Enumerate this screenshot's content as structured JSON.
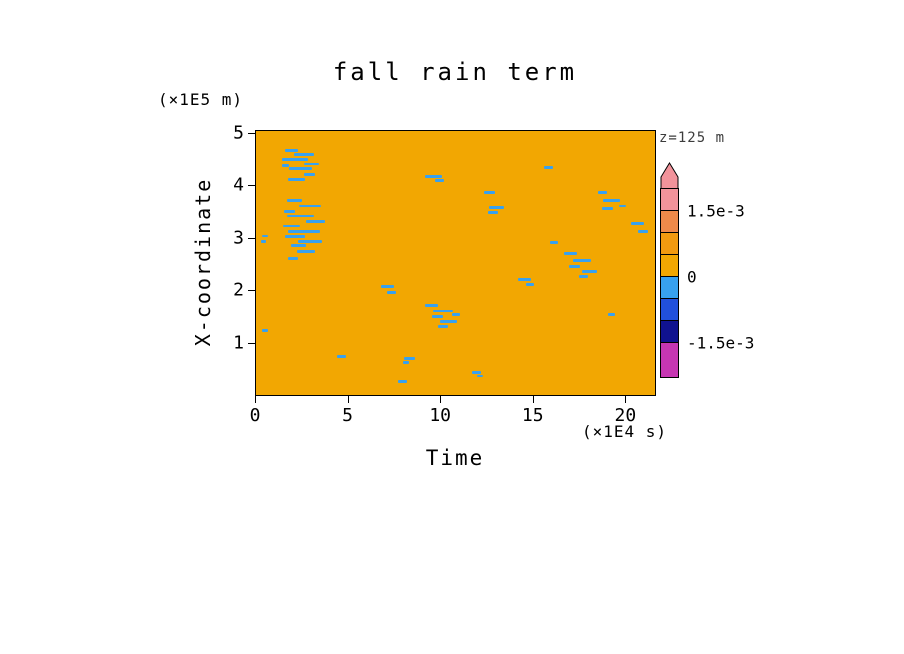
{
  "title": "fall rain term",
  "annotation": "z=125 m",
  "axes": {
    "x_label": "Time",
    "x_unit": "(×1E4 s)",
    "y_label": "X-coordinate",
    "y_unit": "(×1E5 m)",
    "x_ticks": [
      0,
      5,
      10,
      15,
      20
    ],
    "y_ticks": [
      1,
      2,
      3,
      4,
      5
    ]
  },
  "chart_data": {
    "type": "heatmap",
    "title": "fall rain term",
    "xlabel": "Time (×1E4 s)",
    "ylabel": "X-coordinate (×1E5 m)",
    "level_annotation": "z=125 m",
    "x_range": [
      0,
      21.6
    ],
    "y_range": [
      0,
      5.05
    ],
    "background_value": 0,
    "background_color": "#F2A702",
    "negative_patch_color": "#38A1EF",
    "colorbar": {
      "arrow_color": "#F2939B",
      "bands": [
        {
          "color": "#F2939B",
          "label_below": "1.5e-3"
        },
        {
          "color": "#EF8A4A"
        },
        {
          "color": "#F29A10"
        },
        {
          "color": "#F2A702",
          "label_below": "0"
        },
        {
          "color": "#38A1EF"
        },
        {
          "color": "#2150DC"
        },
        {
          "color": "#10128F",
          "label_below": "-1.5e-3"
        },
        {
          "color": "#C636B2",
          "tall": true
        }
      ]
    },
    "patches": [
      {
        "t": 1.9,
        "x": 4.68,
        "w": 0.7
      },
      {
        "t": 2.6,
        "x": 4.6,
        "w": 1.1
      },
      {
        "t": 2.1,
        "x": 4.5,
        "w": 1.4
      },
      {
        "t": 3.0,
        "x": 4.42,
        "w": 0.8
      },
      {
        "t": 2.4,
        "x": 4.33,
        "w": 1.2
      },
      {
        "t": 1.6,
        "x": 4.4,
        "w": 0.4
      },
      {
        "t": 2.9,
        "x": 4.22,
        "w": 0.6
      },
      {
        "t": 2.2,
        "x": 4.12,
        "w": 0.9
      },
      {
        "t": 2.1,
        "x": 3.72,
        "w": 0.8
      },
      {
        "t": 2.9,
        "x": 3.62,
        "w": 1.2
      },
      {
        "t": 1.8,
        "x": 3.52,
        "w": 0.6
      },
      {
        "t": 2.4,
        "x": 3.43,
        "w": 1.5
      },
      {
        "t": 3.2,
        "x": 3.33,
        "w": 1.0
      },
      {
        "t": 1.9,
        "x": 3.24,
        "w": 0.9
      },
      {
        "t": 2.6,
        "x": 3.14,
        "w": 1.7
      },
      {
        "t": 2.1,
        "x": 3.04,
        "w": 1.1
      },
      {
        "t": 2.9,
        "x": 2.95,
        "w": 1.3
      },
      {
        "t": 2.3,
        "x": 2.86,
        "w": 0.8
      },
      {
        "t": 2.7,
        "x": 2.76,
        "w": 1.0
      },
      {
        "t": 2.0,
        "x": 2.62,
        "w": 0.5
      },
      {
        "t": 0.5,
        "x": 3.05,
        "w": 0.35
      },
      {
        "t": 0.4,
        "x": 2.95,
        "w": 0.3
      },
      {
        "t": 9.6,
        "x": 4.18,
        "w": 0.9
      },
      {
        "t": 9.9,
        "x": 4.1,
        "w": 0.5
      },
      {
        "t": 12.6,
        "x": 3.88,
        "w": 0.6
      },
      {
        "t": 13.0,
        "x": 3.6,
        "w": 0.8
      },
      {
        "t": 12.8,
        "x": 3.5,
        "w": 0.5
      },
      {
        "t": 15.8,
        "x": 4.35,
        "w": 0.5
      },
      {
        "t": 18.7,
        "x": 3.88,
        "w": 0.5
      },
      {
        "t": 19.2,
        "x": 3.72,
        "w": 0.9
      },
      {
        "t": 19.0,
        "x": 3.58,
        "w": 0.6
      },
      {
        "t": 19.8,
        "x": 3.62,
        "w": 0.4
      },
      {
        "t": 20.6,
        "x": 3.28,
        "w": 0.7
      },
      {
        "t": 20.9,
        "x": 3.14,
        "w": 0.5
      },
      {
        "t": 14.5,
        "x": 2.22,
        "w": 0.7
      },
      {
        "t": 14.8,
        "x": 2.12,
        "w": 0.4
      },
      {
        "t": 16.1,
        "x": 2.92,
        "w": 0.4
      },
      {
        "t": 17.0,
        "x": 2.72,
        "w": 0.7
      },
      {
        "t": 17.6,
        "x": 2.58,
        "w": 1.0
      },
      {
        "t": 17.2,
        "x": 2.47,
        "w": 0.6
      },
      {
        "t": 18.0,
        "x": 2.37,
        "w": 0.8
      },
      {
        "t": 17.7,
        "x": 2.27,
        "w": 0.5
      },
      {
        "t": 7.1,
        "x": 2.08,
        "w": 0.7
      },
      {
        "t": 7.3,
        "x": 1.97,
        "w": 0.5
      },
      {
        "t": 9.5,
        "x": 1.72,
        "w": 0.7
      },
      {
        "t": 10.1,
        "x": 1.62,
        "w": 1.1
      },
      {
        "t": 9.8,
        "x": 1.52,
        "w": 0.6
      },
      {
        "t": 10.4,
        "x": 1.42,
        "w": 0.9
      },
      {
        "t": 10.1,
        "x": 1.32,
        "w": 0.5
      },
      {
        "t": 10.8,
        "x": 1.56,
        "w": 0.4
      },
      {
        "t": 8.3,
        "x": 0.72,
        "w": 0.6
      },
      {
        "t": 8.1,
        "x": 0.63,
        "w": 0.3
      },
      {
        "t": 4.6,
        "x": 0.75,
        "w": 0.5
      },
      {
        "t": 7.9,
        "x": 0.28,
        "w": 0.5
      },
      {
        "t": 11.9,
        "x": 0.45,
        "w": 0.5
      },
      {
        "t": 12.1,
        "x": 0.38,
        "w": 0.3
      },
      {
        "t": 19.2,
        "x": 1.55,
        "w": 0.4
      },
      {
        "t": 0.5,
        "x": 1.25,
        "w": 0.3
      }
    ]
  }
}
